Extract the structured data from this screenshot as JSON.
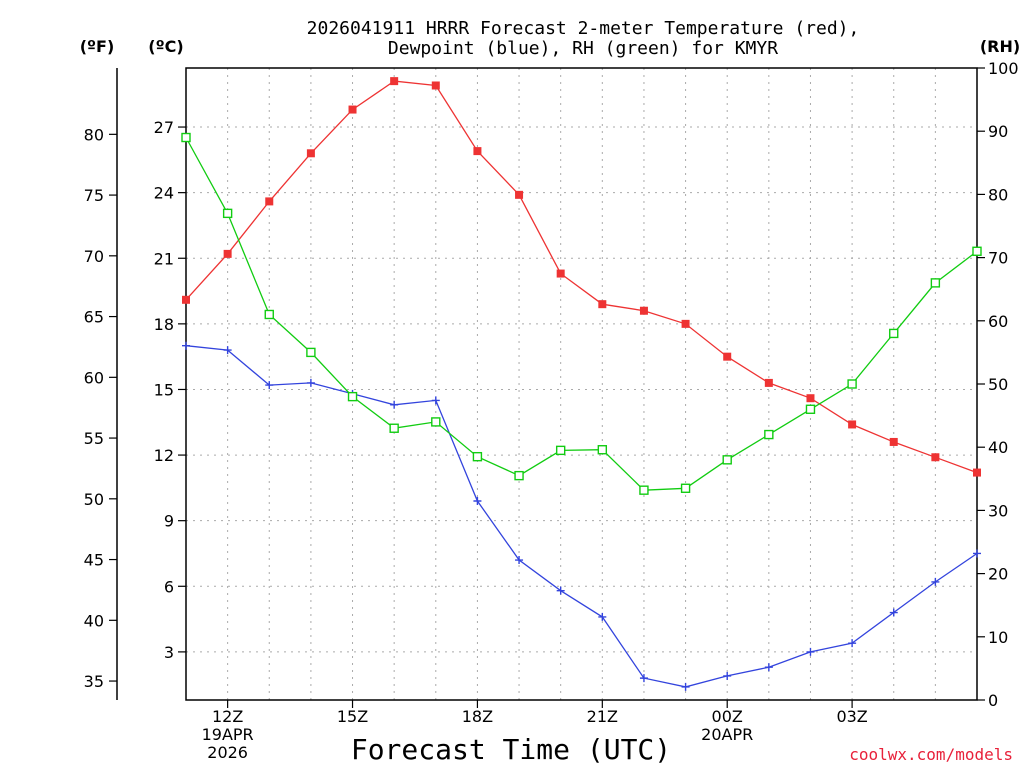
{
  "chart_data": {
    "type": "line",
    "title_line1": "2026041911 HRRR Forecast 2-meter Temperature (red),",
    "title_line2": "Dewpoint (blue), RH (green) for KMYR",
    "xlabel": "Forecast Time (UTC)",
    "credit": "coolwx.com/models",
    "units": {
      "fahrenheit": "(ºF)",
      "celsius": "(ºC)",
      "rh": "(RH)"
    },
    "x_hours": [
      11,
      12,
      13,
      14,
      15,
      16,
      17,
      18,
      19,
      20,
      21,
      22,
      23,
      24,
      25,
      26,
      27,
      28,
      29,
      30
    ],
    "xlim": [
      11,
      30
    ],
    "x_ticks": [
      {
        "hour": 12,
        "lines": [
          "12Z",
          "19APR",
          "2026"
        ]
      },
      {
        "hour": 15,
        "lines": [
          "15Z"
        ]
      },
      {
        "hour": 18,
        "lines": [
          "18Z"
        ]
      },
      {
        "hour": 21,
        "lines": [
          "21Z"
        ]
      },
      {
        "hour": 24,
        "lines": [
          "00Z",
          "20APR"
        ]
      },
      {
        "hour": 27,
        "lines": [
          "03Z"
        ]
      }
    ],
    "celsius_ylim": [
      0.8,
      29.7
    ],
    "celsius_ticks": [
      "3",
      "6",
      "9",
      "12",
      "15",
      "18",
      "21",
      "24",
      "27"
    ],
    "fahrenheit_ticks": [
      "35",
      "40",
      "45",
      "50",
      "55",
      "60",
      "65",
      "70",
      "75",
      "80"
    ],
    "rh_ylim": [
      0,
      100
    ],
    "rh_ticks": [
      "0",
      "10",
      "20",
      "30",
      "40",
      "50",
      "60",
      "70",
      "80",
      "90",
      "100"
    ],
    "series": [
      {
        "name": "Temperature",
        "units": "C",
        "color": "#ee3333",
        "marker": "filled-square",
        "values": [
          19.1,
          21.2,
          23.6,
          25.8,
          27.8,
          29.1,
          28.9,
          25.9,
          23.9,
          20.3,
          18.9,
          18.6,
          18.0,
          16.5,
          15.3,
          14.6,
          13.4,
          12.6,
          11.9,
          11.2
        ]
      },
      {
        "name": "Dewpoint",
        "units": "C",
        "color": "#3344dd",
        "marker": "plus",
        "values": [
          17.0,
          16.8,
          15.2,
          15.3,
          14.8,
          14.3,
          14.5,
          9.9,
          7.2,
          5.8,
          4.6,
          1.8,
          1.4,
          1.9,
          2.3,
          3.0,
          3.4,
          4.8,
          6.2,
          7.5
        ]
      },
      {
        "name": "RH",
        "units": "%",
        "color": "#11cc11",
        "marker": "open-square",
        "values": [
          89,
          77,
          61,
          55,
          48,
          43,
          44,
          38.5,
          35.5,
          39.5,
          39.6,
          33.2,
          33.5,
          38,
          42,
          46,
          50,
          58,
          66,
          71
        ]
      }
    ]
  }
}
